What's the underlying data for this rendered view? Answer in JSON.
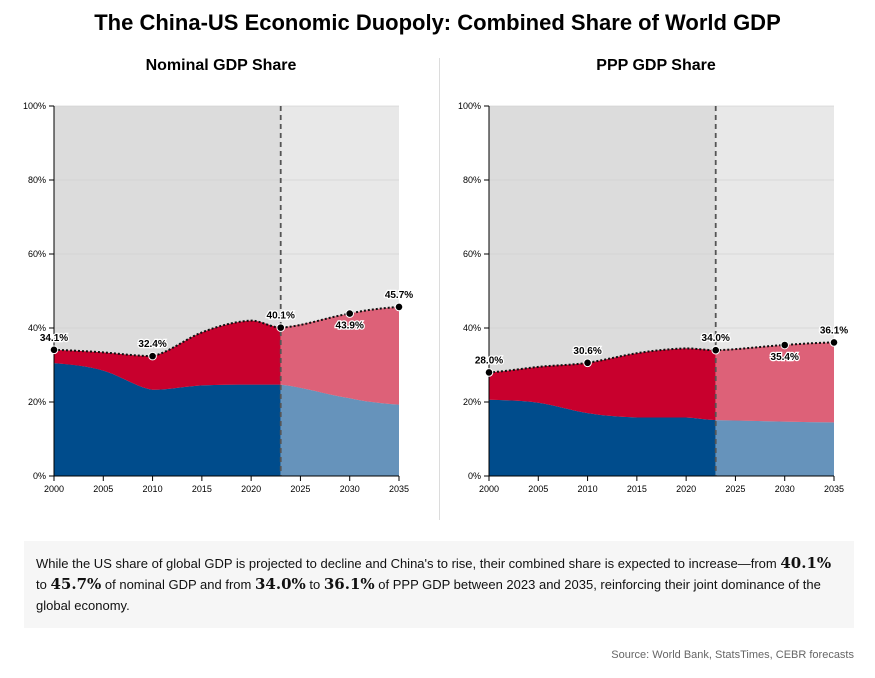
{
  "title": "The China-US Economic Duopoly: Combined Share of World GDP",
  "chart_data": [
    {
      "type": "area",
      "title": "Nominal GDP Share",
      "stacked": true,
      "x": [
        2000,
        2005,
        2010,
        2015,
        2020,
        2023,
        2030,
        2035
      ],
      "xlim": [
        2000,
        2035
      ],
      "ylim": [
        0,
        100
      ],
      "x_ticks": [
        "2000",
        "2005",
        "2010",
        "2015",
        "2020",
        "2025",
        "2030",
        "2035"
      ],
      "y_ticks": [
        "0%",
        "20%",
        "40%",
        "60%",
        "80%",
        "100%"
      ],
      "forecast_start": 2023,
      "grid": true,
      "series": [
        {
          "values": [
            30.5,
            28.5,
            23.3,
            24.5,
            24.7,
            24.7,
            21,
            19.3
          ],
          "color": "#004c8c",
          "forecast_color": "#6693bb"
        },
        {
          "values": [
            3.6,
            4.9,
            9.1,
            14.3,
            17.3,
            15.4,
            22.9,
            26.4
          ],
          "color": "#c8002d",
          "forecast_color": "#dd6178"
        }
      ],
      "combined": [
        34.1,
        33.4,
        32.4,
        38.8,
        42.0,
        40.1,
        43.9,
        45.7
      ],
      "labels": [
        {
          "x": 2000,
          "text": "34.1%",
          "pos": "above"
        },
        {
          "x": 2010,
          "text": "32.4%",
          "pos": "above"
        },
        {
          "x": 2023,
          "text": "40.1%",
          "pos": "above"
        },
        {
          "x": 2030,
          "text": "43.9%",
          "pos": "below"
        },
        {
          "x": 2035,
          "text": "45.7%",
          "pos": "above"
        }
      ]
    },
    {
      "type": "area",
      "title": "PPP GDP Share",
      "stacked": true,
      "x": [
        2000,
        2005,
        2010,
        2015,
        2020,
        2023,
        2030,
        2035
      ],
      "xlim": [
        2000,
        2035
      ],
      "ylim": [
        0,
        100
      ],
      "x_ticks": [
        "2000",
        "2005",
        "2010",
        "2015",
        "2020",
        "2025",
        "2030",
        "2035"
      ],
      "y_ticks": [
        "0%",
        "20%",
        "40%",
        "60%",
        "80%",
        "100%"
      ],
      "forecast_start": 2023,
      "grid": true,
      "series": [
        {
          "values": [
            20.6,
            19.8,
            17.0,
            15.8,
            15.8,
            15.1,
            14.7,
            14.5
          ],
          "color": "#004c8c",
          "forecast_color": "#6693bb"
        },
        {
          "values": [
            7.4,
            9.7,
            13.6,
            17.4,
            18.7,
            18.9,
            20.7,
            21.6
          ],
          "color": "#c8002d",
          "forecast_color": "#dd6178"
        }
      ],
      "combined": [
        28.0,
        29.5,
        30.6,
        33.2,
        34.5,
        34.0,
        35.4,
        36.1
      ],
      "labels": [
        {
          "x": 2000,
          "text": "28.0%",
          "pos": "above"
        },
        {
          "x": 2010,
          "text": "30.6%",
          "pos": "above"
        },
        {
          "x": 2023,
          "text": "34.0%",
          "pos": "above"
        },
        {
          "x": 2030,
          "text": "35.4%",
          "pos": "below"
        },
        {
          "x": 2035,
          "text": "36.1%",
          "pos": "above"
        }
      ]
    }
  ],
  "summary": {
    "part1": "While the US share of global GDP is projected to decline and China's to rise, their combined share is expected to increase—from",
    "n1": "40.1%",
    "part2": "to",
    "n2": "45.7%",
    "part3": "of nominal GDP and from",
    "n3": "34.0%",
    "part4": "to",
    "n4": "36.1%",
    "part5": "of PPP GDP between 2023 and 2035, reinforcing their joint dominance of the global economy."
  },
  "source": "Source: World Bank, StatsTimes, CEBR forecasts"
}
